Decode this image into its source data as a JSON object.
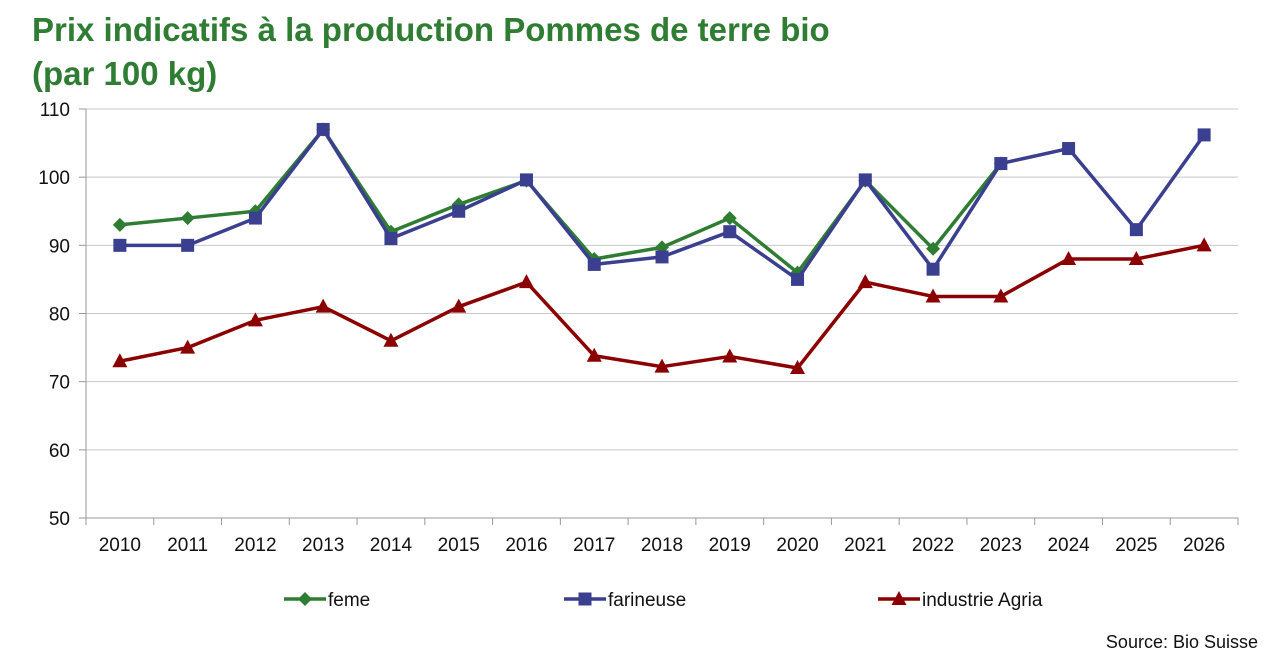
{
  "title_line1": "Prix indicatifs à la production Pommes de terre bio",
  "title_line2": "(par 100 kg)",
  "source": "Source: Bio Suisse",
  "chart_data": {
    "type": "line",
    "title": "Prix indicatifs à la production Pommes de terre bio (par 100 kg)",
    "xlabel": "",
    "ylabel": "",
    "ylim": [
      50,
      110
    ],
    "yticks": [
      50,
      60,
      70,
      80,
      90,
      100,
      110
    ],
    "grid": true,
    "legend_position": "bottom",
    "categories": [
      "2010",
      "2011",
      "2012",
      "2013",
      "2014",
      "2015",
      "2016",
      "2017",
      "2018",
      "2019",
      "2020",
      "2021",
      "2022",
      "2023",
      "2024",
      "2025",
      "2026"
    ],
    "series": [
      {
        "name": "feme",
        "color": "#2e7d32",
        "marker": "diamond",
        "values": [
          93,
          94,
          95,
          107,
          92,
          96,
          99.5,
          88,
          89.7,
          94,
          86,
          99.5,
          89.5,
          102,
          null,
          null,
          null
        ]
      },
      {
        "name": "farineuse",
        "color": "#3b3f8f",
        "marker": "square",
        "values": [
          90,
          90,
          94,
          107,
          91,
          95,
          99.6,
          87.2,
          88.3,
          92,
          85,
          99.6,
          86.5,
          102,
          104.2,
          92.3,
          106.2
        ]
      },
      {
        "name": "industrie Agria",
        "color": "#8b0000",
        "marker": "triangle",
        "values": [
          73,
          75,
          79,
          81,
          76,
          81,
          84.6,
          73.8,
          72.2,
          73.7,
          72,
          84.6,
          82.5,
          82.5,
          88,
          88,
          90
        ]
      }
    ]
  }
}
